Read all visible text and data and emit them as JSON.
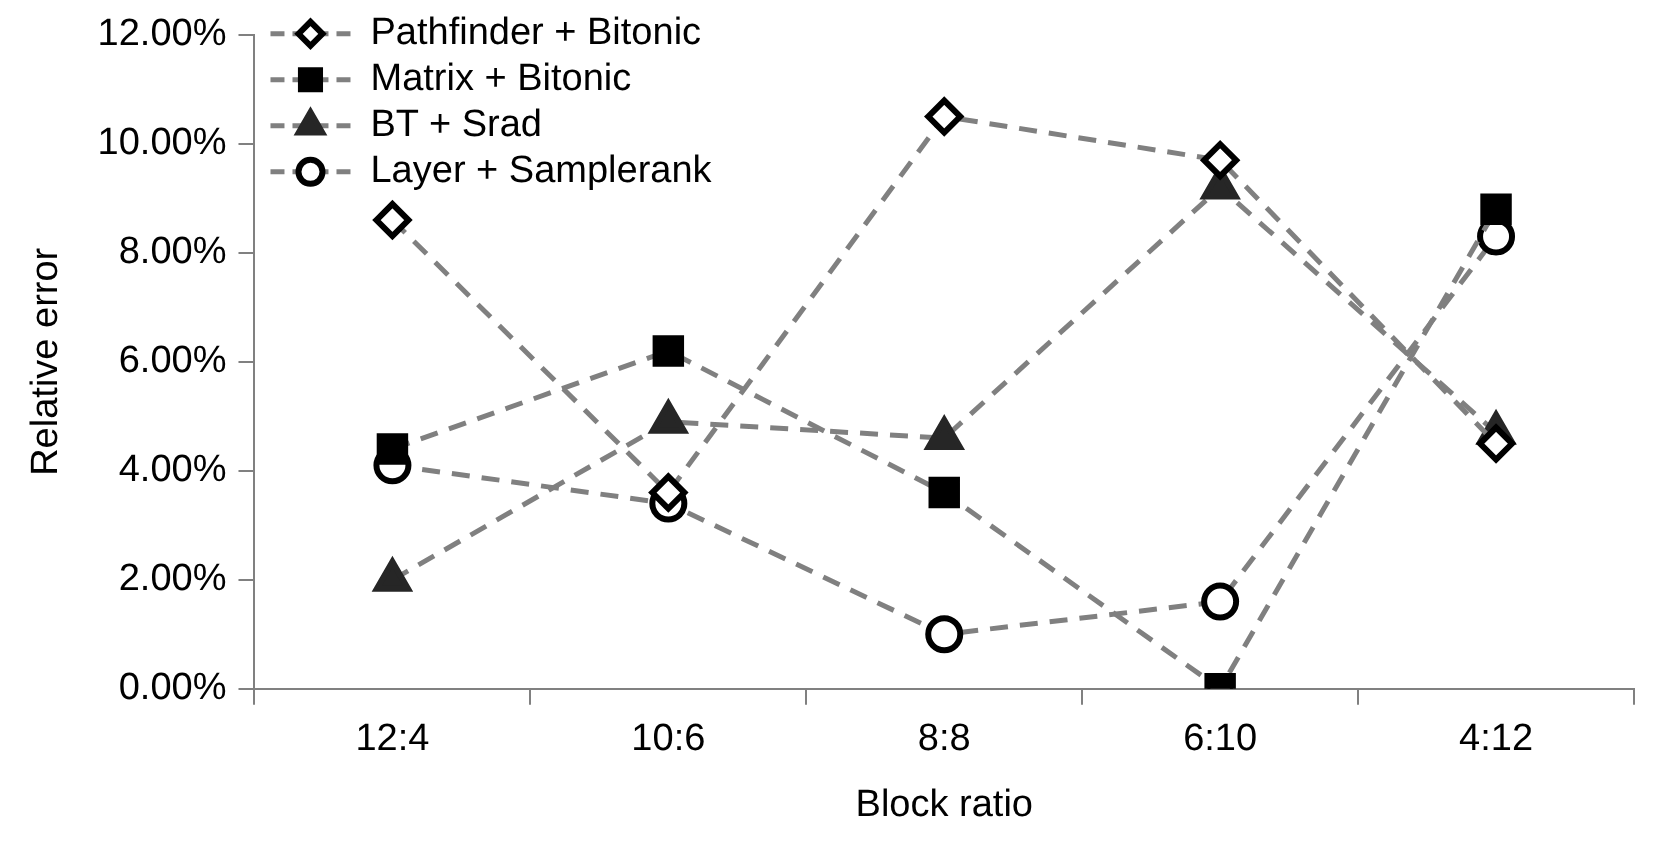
{
  "chart_data": {
    "type": "line",
    "xlabel": "Block ratio",
    "ylabel": "Relative error",
    "categories": [
      "12:4",
      "10:6",
      "8:8",
      "6:10",
      "4:12"
    ],
    "ylim": [
      0,
      12
    ],
    "yticks": [
      {
        "value": 0,
        "label": "0.00%"
      },
      {
        "value": 2,
        "label": "2.00%"
      },
      {
        "value": 4,
        "label": "4.00%"
      },
      {
        "value": 6,
        "label": "6.00%"
      },
      {
        "value": 8,
        "label": "8.00%"
      },
      {
        "value": 10,
        "label": "10.00%"
      },
      {
        "value": 12,
        "label": "12.00%"
      }
    ],
    "grid": false,
    "legend": "top left",
    "line_style": "dashed",
    "series": [
      {
        "name": "Pathfinder + Bitonic",
        "color": "#808080",
        "marker": "diamond",
        "values": [
          8.6,
          3.6,
          10.5,
          9.7,
          4.5
        ]
      },
      {
        "name": "Matrix + Bitonic",
        "color": "#808080",
        "marker": "square",
        "values": [
          4.4,
          6.2,
          3.6,
          0,
          8.8
        ]
      },
      {
        "name": "BT + Srad",
        "color": "#808080",
        "marker": "triangle",
        "values": [
          2.0,
          4.9,
          4.6,
          9.2,
          4.7
        ]
      },
      {
        "name": "Layer + Samplerank",
        "color": "#808080",
        "marker": "circle",
        "values": [
          4.1,
          3.4,
          1.0,
          1.6,
          8.3
        ]
      }
    ]
  }
}
